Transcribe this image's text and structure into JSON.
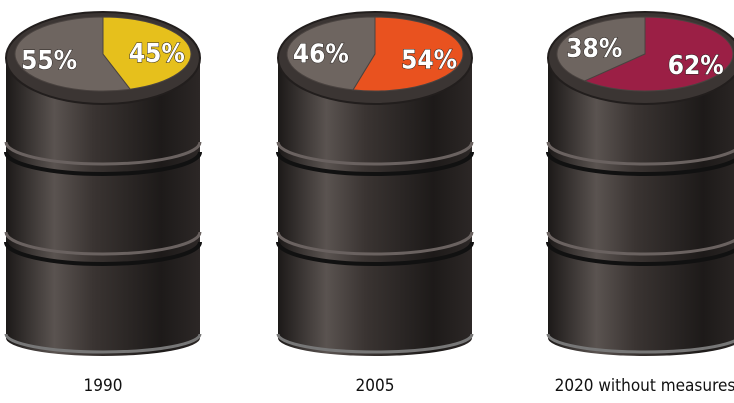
{
  "chart_data": [
    {
      "type": "pie",
      "title": "1990",
      "values": [
        55,
        45
      ],
      "value_labels": [
        "55%",
        "45%"
      ],
      "colors": [
        "#6e6560",
        "#e6c01c"
      ]
    },
    {
      "type": "pie",
      "title": "2005",
      "values": [
        46,
        54
      ],
      "value_labels": [
        "46%",
        "54%"
      ],
      "colors": [
        "#6e6560",
        "#e9521f"
      ]
    },
    {
      "type": "pie",
      "title": "2020 without measures",
      "values": [
        38,
        62
      ],
      "value_labels": [
        "38%",
        "62%"
      ],
      "colors": [
        "#6e6560",
        "#9b1f45"
      ]
    }
  ]
}
